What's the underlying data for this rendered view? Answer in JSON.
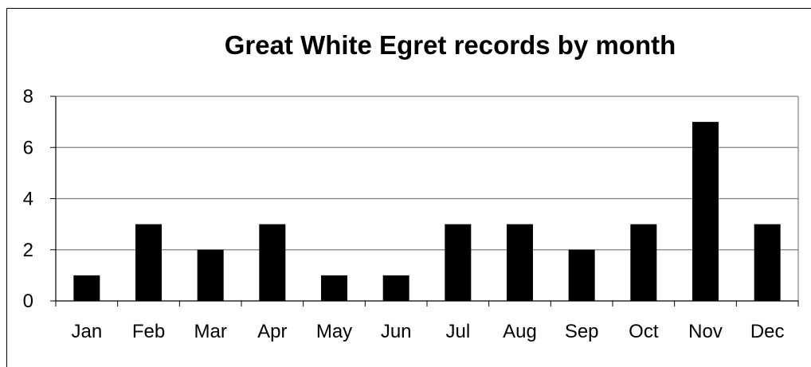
{
  "chart_data": {
    "type": "bar",
    "title": "Great White Egret records by month",
    "categories": [
      "Jan",
      "Feb",
      "Mar",
      "Apr",
      "May",
      "Jun",
      "Jul",
      "Aug",
      "Sep",
      "Oct",
      "Nov",
      "Dec"
    ],
    "values": [
      1,
      3,
      2,
      3,
      1,
      1,
      3,
      3,
      2,
      3,
      7,
      3
    ],
    "xlabel": "",
    "ylabel": "",
    "ylim": [
      0,
      8
    ],
    "yticks": [
      "0",
      "2",
      "4",
      "6",
      "8"
    ],
    "grid": "horizontal",
    "legend": "none",
    "colors": {
      "bar": "#000000",
      "grid": "#808080",
      "axis": "#000000"
    }
  }
}
